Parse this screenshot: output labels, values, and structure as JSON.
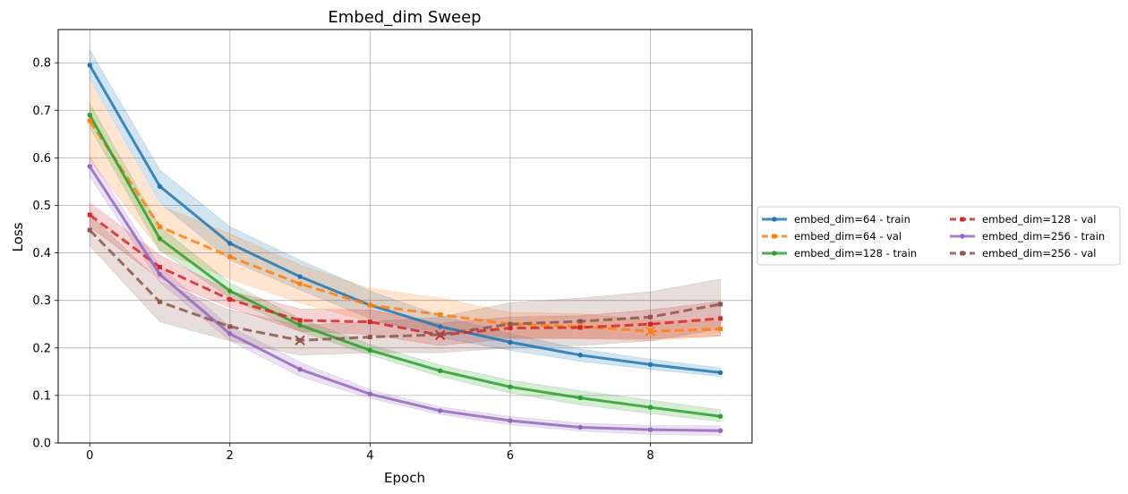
{
  "chart_data": {
    "type": "line",
    "title": "Embed_dim Sweep",
    "xlabel": "Epoch",
    "ylabel": "Loss",
    "xlim": [
      -0.45,
      9.45
    ],
    "ylim": [
      0.0,
      0.87
    ],
    "xticks": [
      0,
      2,
      4,
      6,
      8
    ],
    "xtick_labels": [
      "0",
      "2",
      "4",
      "6",
      "8"
    ],
    "yticks": [
      0.0,
      0.1,
      0.2,
      0.3,
      0.4,
      0.5,
      0.6,
      0.7,
      0.8
    ],
    "ytick_labels": [
      "0.0",
      "0.1",
      "0.2",
      "0.3",
      "0.4",
      "0.5",
      "0.6",
      "0.7",
      "0.8"
    ],
    "grid": true,
    "legend_position": "right, outside plot",
    "legend_columns": 2,
    "x": [
      0,
      1,
      2,
      3,
      4,
      5,
      6,
      7,
      8,
      9
    ],
    "series": [
      {
        "name": "embed_dim=64 - train",
        "color": "#1f77b4",
        "style": "solid",
        "marker": "dot",
        "values": [
          0.795,
          0.54,
          0.42,
          0.35,
          0.29,
          0.245,
          0.212,
          0.185,
          0.165,
          0.148
        ],
        "band": {
          "lower": [
            0.765,
            0.505,
            0.385,
            0.322,
            0.262,
            0.222,
            0.195,
            0.172,
            0.155,
            0.14
          ],
          "upper": [
            0.828,
            0.575,
            0.455,
            0.385,
            0.32,
            0.268,
            0.23,
            0.198,
            0.176,
            0.158
          ]
        }
      },
      {
        "name": "embed_dim=64 - val",
        "color": "#ff7f0e",
        "style": "dashed",
        "marker": "square",
        "values": [
          0.678,
          0.455,
          0.392,
          0.335,
          0.29,
          0.27,
          0.25,
          0.245,
          0.235,
          0.24
        ],
        "band": {
          "lower": [
            0.595,
            0.405,
            0.345,
            0.295,
            0.255,
            0.235,
            0.222,
            0.22,
            0.215,
            0.225
          ],
          "upper": [
            0.76,
            0.5,
            0.44,
            0.375,
            0.325,
            0.305,
            0.275,
            0.272,
            0.258,
            0.255
          ]
        },
        "best_marker": {
          "x": 8,
          "y": 0.235
        }
      },
      {
        "name": "embed_dim=128 - train",
        "color": "#2ca02c",
        "style": "solid",
        "marker": "dot",
        "values": [
          0.69,
          0.43,
          0.32,
          0.248,
          0.195,
          0.152,
          0.118,
          0.095,
          0.075,
          0.056
        ],
        "band": {
          "lower": [
            0.665,
            0.405,
            0.305,
            0.235,
            0.185,
            0.14,
            0.105,
            0.08,
            0.062,
            0.045
          ],
          "upper": [
            0.715,
            0.455,
            0.337,
            0.262,
            0.207,
            0.164,
            0.132,
            0.11,
            0.09,
            0.07
          ]
        }
      },
      {
        "name": "embed_dim=128 - val",
        "color": "#d62728",
        "style": "dashed",
        "marker": "square",
        "values": [
          0.48,
          0.37,
          0.302,
          0.258,
          0.255,
          0.227,
          0.242,
          0.243,
          0.25,
          0.262
        ],
        "band": {
          "lower": [
            0.455,
            0.345,
            0.285,
            0.235,
            0.228,
            0.205,
            0.22,
            0.22,
            0.22,
            0.225
          ],
          "upper": [
            0.505,
            0.395,
            0.32,
            0.282,
            0.28,
            0.252,
            0.265,
            0.268,
            0.28,
            0.298
          ]
        },
        "best_marker": {
          "x": 5,
          "y": 0.227
        }
      },
      {
        "name": "embed_dim=256 - train",
        "color": "#9467bd",
        "style": "solid",
        "marker": "dot",
        "values": [
          0.582,
          0.355,
          0.23,
          0.155,
          0.103,
          0.068,
          0.047,
          0.033,
          0.028,
          0.026
        ],
        "band": {
          "lower": [
            0.56,
            0.338,
            0.215,
            0.14,
            0.094,
            0.06,
            0.038,
            0.025,
            0.018,
            0.016
          ],
          "upper": [
            0.603,
            0.372,
            0.245,
            0.17,
            0.112,
            0.076,
            0.056,
            0.042,
            0.037,
            0.036
          ]
        }
      },
      {
        "name": "embed_dim=256 - val",
        "color": "#8c564b",
        "style": "dashed",
        "marker": "square",
        "values": [
          0.448,
          0.297,
          0.245,
          0.216,
          0.223,
          0.228,
          0.25,
          0.256,
          0.265,
          0.292
        ],
        "band": {
          "lower": [
            0.415,
            0.255,
            0.215,
            0.185,
            0.19,
            0.19,
            0.2,
            0.205,
            0.215,
            0.24
          ],
          "upper": [
            0.48,
            0.34,
            0.28,
            0.248,
            0.255,
            0.265,
            0.295,
            0.305,
            0.318,
            0.345
          ]
        },
        "best_marker": {
          "x": 3,
          "y": 0.216
        }
      }
    ]
  }
}
